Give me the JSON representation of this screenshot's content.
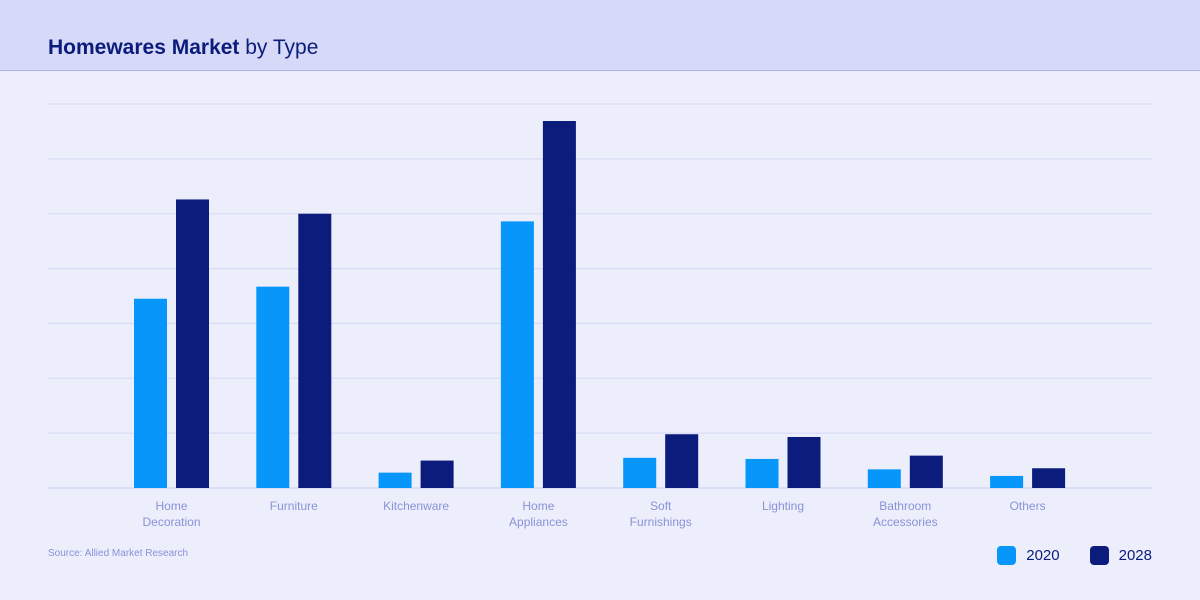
{
  "header": {
    "title_bold": "Homewares Market",
    "title_light": " by Type"
  },
  "source": "Source: Allied Market Research",
  "colors": {
    "series_2020": "#0797fb",
    "series_2028": "#0b1c7c",
    "gridline": "#d3d7f5",
    "axis_label": "#8a92d8"
  },
  "chart_data": {
    "type": "bar",
    "title": "Homewares Market by Type",
    "categories": [
      "Home\nDecoration",
      "Furniture",
      "Kitchenware",
      "Home\nAppliances",
      "Soft\nFurnishings",
      "Lighting",
      "Bathroom\nAccessories",
      "Others"
    ],
    "series": [
      {
        "name": "2020",
        "values": [
          34.5,
          36.7,
          2.8,
          48.6,
          5.5,
          5.3,
          3.4,
          2.2
        ]
      },
      {
        "name": "2028",
        "values": [
          52.6,
          50.0,
          5.0,
          66.9,
          9.8,
          9.3,
          5.9,
          3.6
        ]
      }
    ],
    "ylim": [
      0,
      70
    ],
    "grid": true,
    "legend": "bottom-right",
    "xlabel": "",
    "ylabel": ""
  }
}
